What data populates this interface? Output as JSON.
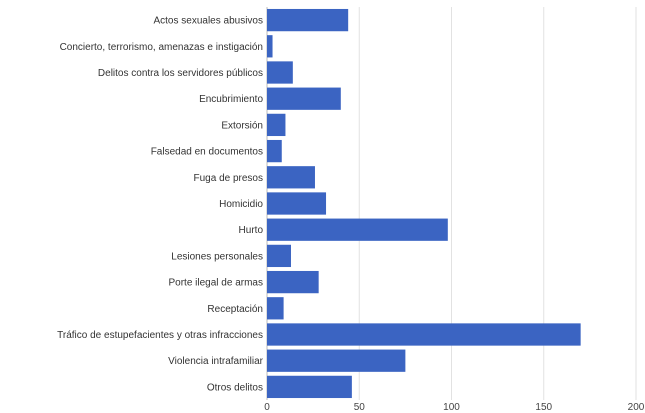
{
  "chart_data": {
    "type": "bar",
    "orientation": "horizontal",
    "categories": [
      "Actos sexuales abusivos",
      "Concierto, terrorismo, amenazas e instigación",
      "Delitos contra los servidores públicos",
      "Encubrimiento",
      "Extorsión",
      "Falsedad en documentos",
      "Fuga de presos",
      "Homicidio",
      "Hurto",
      "Lesiones personales",
      "Porte ilegal de armas",
      "Receptación",
      "Tráfico de estupefacientes y otras infracciones",
      "Violencia intrafamiliar",
      "Otros delitos"
    ],
    "values": [
      44,
      3,
      14,
      40,
      10,
      8,
      26,
      32,
      98,
      13,
      28,
      9,
      170,
      75,
      46
    ],
    "xticks": [
      "0",
      "50",
      "100",
      "150",
      "200"
    ],
    "xlim": [
      0,
      200
    ],
    "grid": true,
    "bar_color": "#3b64c2",
    "grid_color": "#e2e2e2"
  }
}
